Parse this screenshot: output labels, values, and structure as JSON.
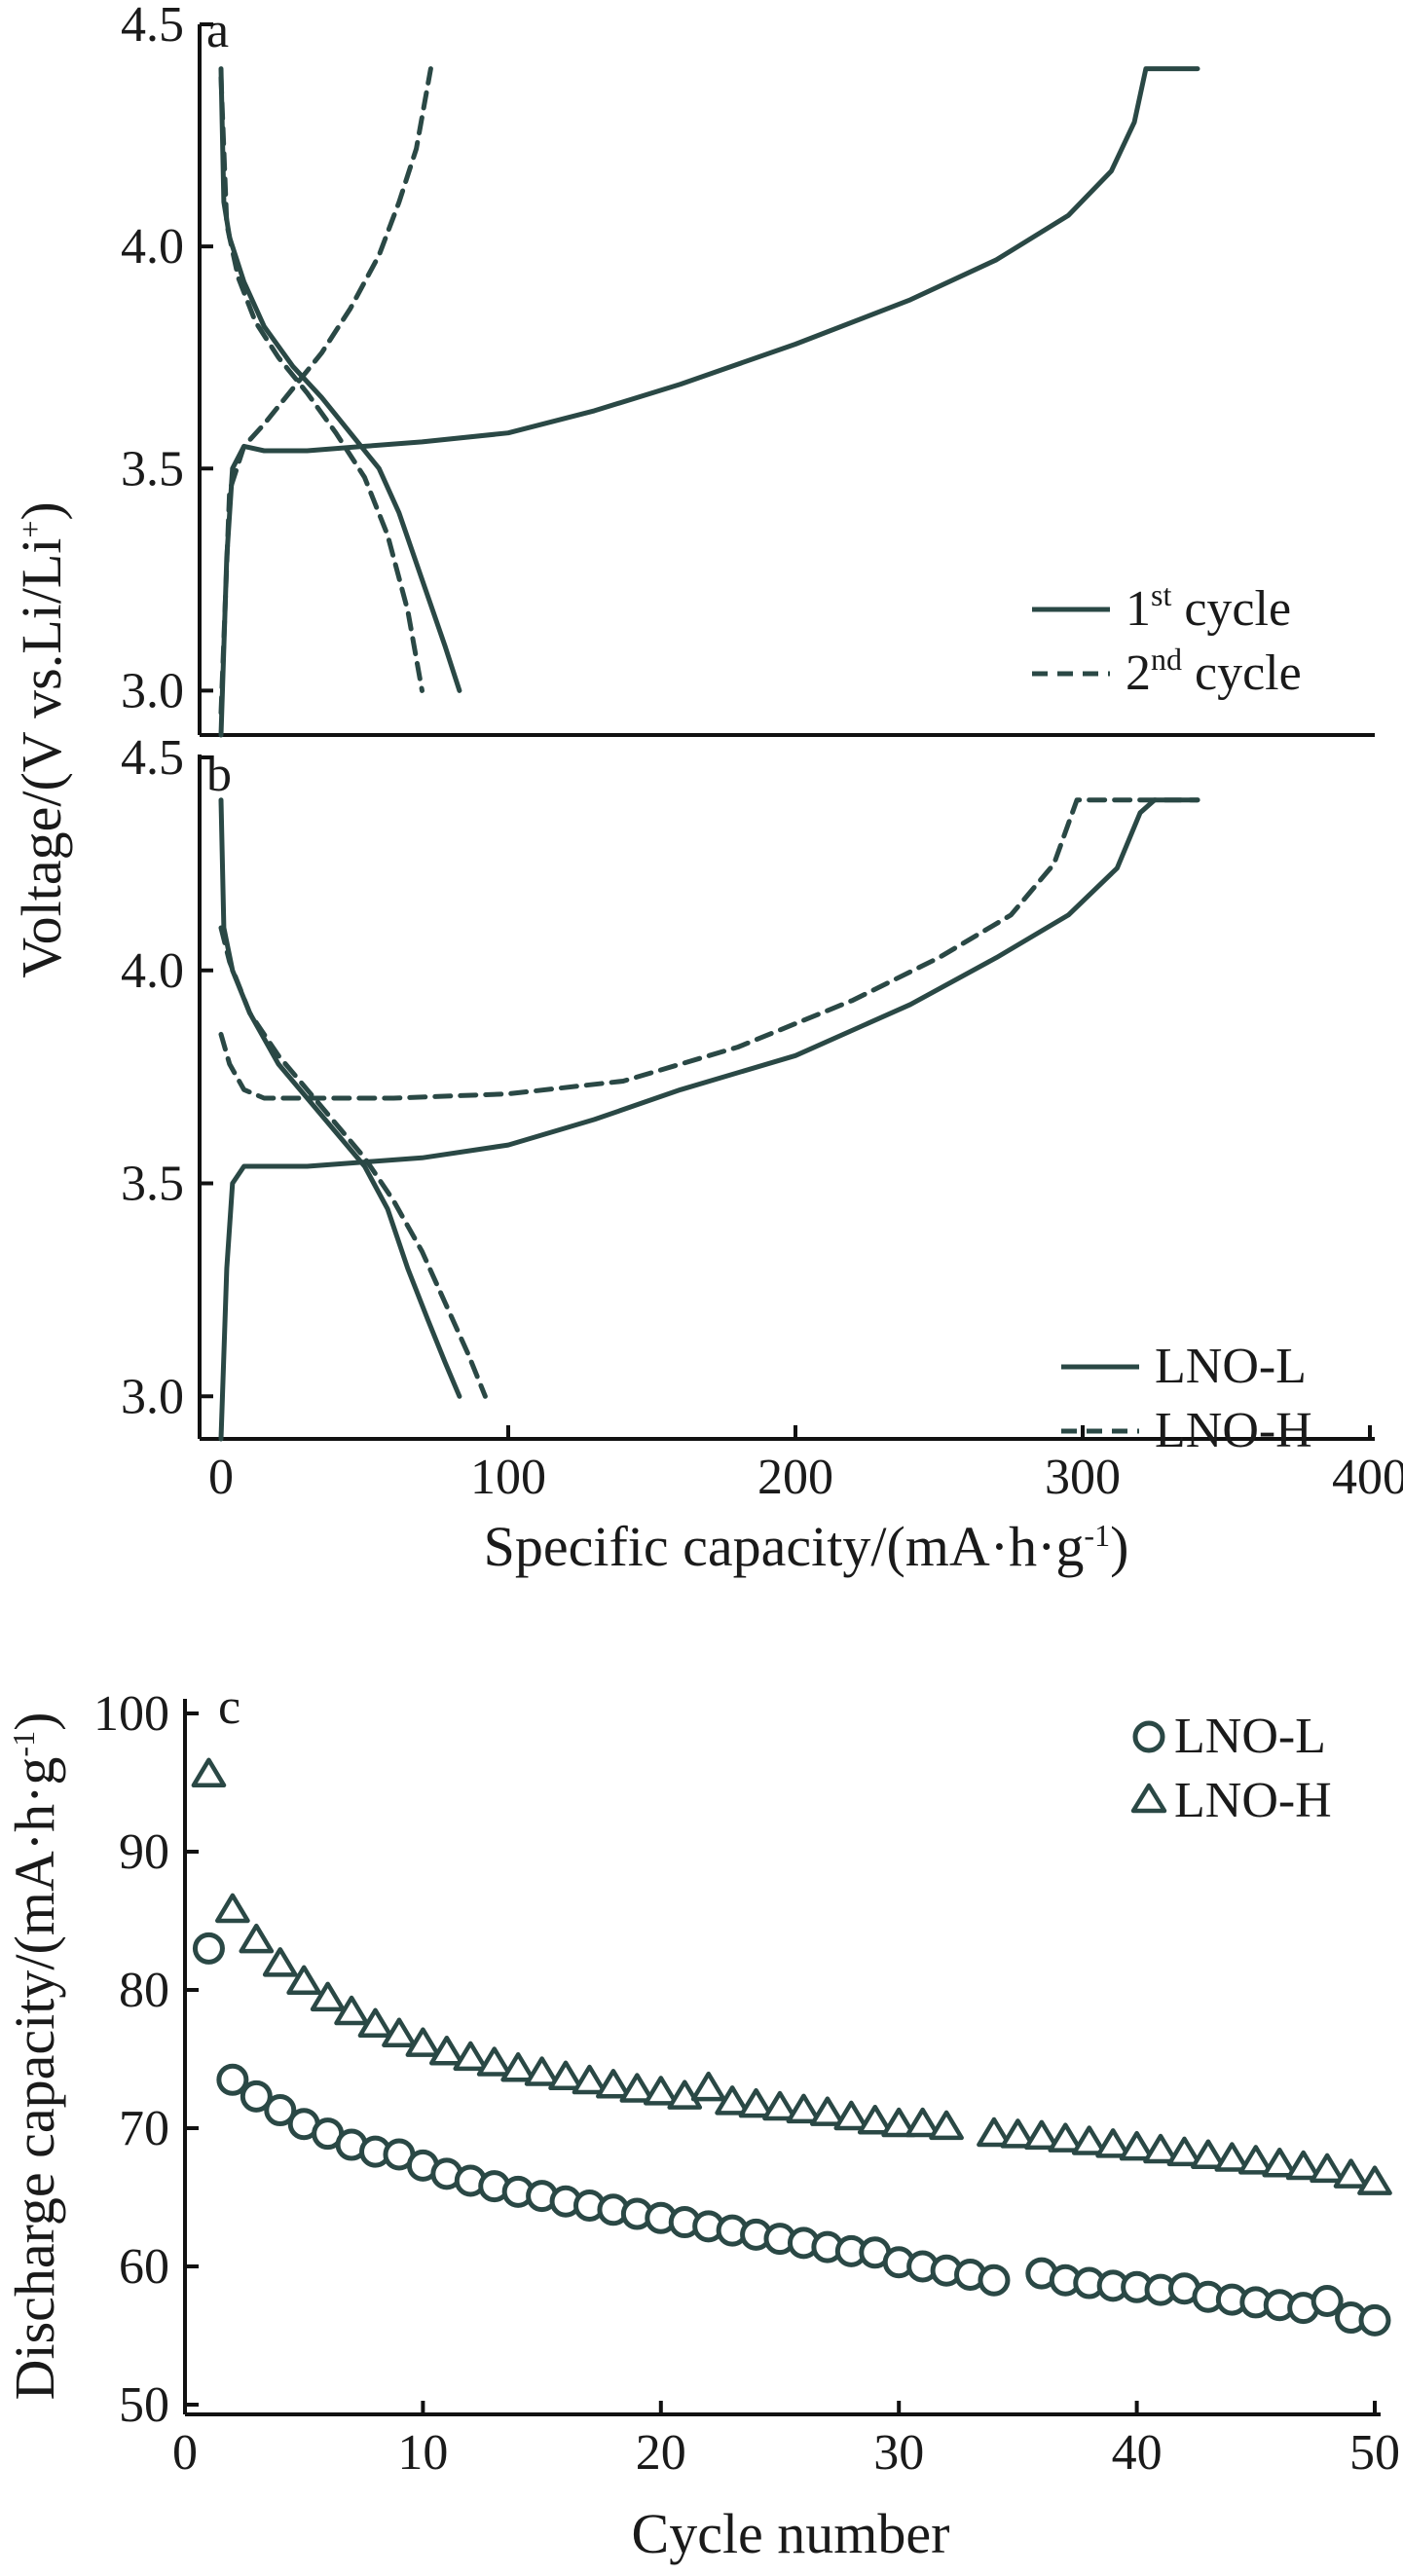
{
  "figure": {
    "shared_ylabel_ab": {
      "main": "Voltage/(V vs.Li/Li",
      "sup": "+",
      "close": ")"
    },
    "xlabel_ab": {
      "main": "Specific capacity/(mA·h·g",
      "sup": "-1",
      "close": ")"
    },
    "ylabel_c": {
      "main": "Discharge capacity/(mA·h·g",
      "sup": "-1",
      "close": ")"
    },
    "xlabel_c": "Cycle number"
  },
  "chart_data": [
    {
      "panel": "a",
      "type": "line",
      "xlim": [
        0,
        400
      ],
      "ylim": [
        2.9,
        4.5
      ],
      "yticks": [
        "3.0",
        "3.5",
        "4.0",
        "4.5"
      ],
      "grid": false,
      "legend_position": "bottom-right",
      "legend": [
        {
          "base": "1",
          "sup": "st",
          "rest": " cycle",
          "style": "solid"
        },
        {
          "base": "2",
          "sup": "nd",
          "rest": " cycle",
          "style": "dashed"
        }
      ],
      "series": [
        {
          "label": "1st cycle charge",
          "style": "solid",
          "points": [
            [
              0,
              2.9
            ],
            [
              2,
              3.3
            ],
            [
              4,
              3.5
            ],
            [
              8,
              3.55
            ],
            [
              15,
              3.54
            ],
            [
              30,
              3.54
            ],
            [
              50,
              3.55
            ],
            [
              70,
              3.56
            ],
            [
              100,
              3.58
            ],
            [
              130,
              3.63
            ],
            [
              160,
              3.69
            ],
            [
              200,
              3.78
            ],
            [
              240,
              3.88
            ],
            [
              270,
              3.97
            ],
            [
              295,
              4.07
            ],
            [
              310,
              4.17
            ],
            [
              318,
              4.28
            ],
            [
              322,
              4.4
            ],
            [
              340,
              4.4
            ]
          ]
        },
        {
          "label": "1st cycle discharge",
          "style": "solid",
          "points": [
            [
              0,
              4.4
            ],
            [
              1,
              4.1
            ],
            [
              3,
              4.02
            ],
            [
              8,
              3.92
            ],
            [
              15,
              3.82
            ],
            [
              25,
              3.73
            ],
            [
              35,
              3.66
            ],
            [
              45,
              3.58
            ],
            [
              55,
              3.5
            ],
            [
              62,
              3.4
            ],
            [
              70,
              3.25
            ],
            [
              78,
              3.1
            ],
            [
              83,
              3.0
            ]
          ]
        },
        {
          "label": "2nd cycle charge",
          "style": "dashed",
          "points": [
            [
              0,
              2.95
            ],
            [
              3,
              3.45
            ],
            [
              8,
              3.55
            ],
            [
              15,
              3.6
            ],
            [
              25,
              3.68
            ],
            [
              35,
              3.76
            ],
            [
              45,
              3.86
            ],
            [
              55,
              3.98
            ],
            [
              62,
              4.1
            ],
            [
              68,
              4.22
            ],
            [
              73,
              4.4
            ]
          ]
        },
        {
          "label": "2nd cycle discharge",
          "style": "dashed",
          "points": [
            [
              0,
              4.38
            ],
            [
              2,
              4.05
            ],
            [
              6,
              3.93
            ],
            [
              12,
              3.83
            ],
            [
              20,
              3.75
            ],
            [
              30,
              3.67
            ],
            [
              40,
              3.58
            ],
            [
              50,
              3.48
            ],
            [
              58,
              3.35
            ],
            [
              65,
              3.18
            ],
            [
              70,
              3.0
            ]
          ]
        }
      ]
    },
    {
      "panel": "b",
      "type": "line",
      "xlabel": "Specific capacity/(mA·h·g-1)",
      "xlim": [
        0,
        400
      ],
      "ylim": [
        2.9,
        4.5
      ],
      "xticks": [
        "0",
        "100",
        "200",
        "300",
        "400"
      ],
      "yticks": [
        "3.0",
        "3.5",
        "4.0",
        "4.5"
      ],
      "grid": false,
      "legend_position": "bottom-right",
      "legend": [
        {
          "base": "LNO-L",
          "sup": "",
          "rest": "",
          "style": "solid"
        },
        {
          "base": "LNO-H",
          "sup": "",
          "rest": "",
          "style": "dashed"
        }
      ],
      "series": [
        {
          "label": "LNO-L charge",
          "style": "solid",
          "points": [
            [
              0,
              2.9
            ],
            [
              2,
              3.3
            ],
            [
              4,
              3.5
            ],
            [
              8,
              3.54
            ],
            [
              15,
              3.54
            ],
            [
              30,
              3.54
            ],
            [
              50,
              3.55
            ],
            [
              70,
              3.56
            ],
            [
              100,
              3.59
            ],
            [
              130,
              3.65
            ],
            [
              160,
              3.72
            ],
            [
              200,
              3.8
            ],
            [
              240,
              3.92
            ],
            [
              270,
              4.03
            ],
            [
              295,
              4.13
            ],
            [
              312,
              4.24
            ],
            [
              320,
              4.37
            ],
            [
              325,
              4.4
            ],
            [
              340,
              4.4
            ]
          ]
        },
        {
          "label": "LNO-L discharge",
          "style": "solid",
          "points": [
            [
              0,
              4.4
            ],
            [
              1,
              4.1
            ],
            [
              4,
              4.0
            ],
            [
              10,
              3.9
            ],
            [
              20,
              3.78
            ],
            [
              30,
              3.7
            ],
            [
              40,
              3.62
            ],
            [
              50,
              3.54
            ],
            [
              58,
              3.44
            ],
            [
              65,
              3.3
            ],
            [
              72,
              3.18
            ],
            [
              78,
              3.08
            ],
            [
              83,
              3.0
            ]
          ]
        },
        {
          "label": "LNO-H charge",
          "style": "dashed",
          "points": [
            [
              0,
              3.85
            ],
            [
              3,
              3.78
            ],
            [
              8,
              3.72
            ],
            [
              15,
              3.7
            ],
            [
              30,
              3.7
            ],
            [
              60,
              3.7
            ],
            [
              100,
              3.71
            ],
            [
              140,
              3.74
            ],
            [
              180,
              3.82
            ],
            [
              220,
              3.93
            ],
            [
              250,
              4.03
            ],
            [
              275,
              4.13
            ],
            [
              290,
              4.25
            ],
            [
              298,
              4.4
            ],
            [
              340,
              4.4
            ]
          ]
        },
        {
          "label": "LNO-H discharge",
          "style": "dashed",
          "points": [
            [
              0,
              4.1
            ],
            [
              3,
              4.02
            ],
            [
              10,
              3.9
            ],
            [
              20,
              3.8
            ],
            [
              30,
              3.72
            ],
            [
              40,
              3.64
            ],
            [
              50,
              3.56
            ],
            [
              60,
              3.46
            ],
            [
              70,
              3.34
            ],
            [
              78,
              3.22
            ],
            [
              86,
              3.1
            ],
            [
              92,
              3.0
            ]
          ]
        }
      ]
    },
    {
      "panel": "c",
      "type": "scatter",
      "xlabel": "Cycle number",
      "xlim": [
        0,
        50
      ],
      "ylim": [
        50,
        100
      ],
      "xticks": [
        "0",
        "10",
        "20",
        "30",
        "40",
        "50"
      ],
      "yticks": [
        "50",
        "60",
        "70",
        "80",
        "90",
        "100"
      ],
      "grid": false,
      "legend_position": "top-right",
      "legend": [
        {
          "name": "LNO-L",
          "marker": "circle"
        },
        {
          "name": "LNO-H",
          "marker": "triangle"
        }
      ],
      "series": [
        {
          "name": "LNO-L",
          "marker": "circle",
          "x": [
            1,
            2,
            3,
            4,
            5,
            6,
            7,
            8,
            9,
            10,
            11,
            12,
            13,
            14,
            15,
            16,
            17,
            18,
            19,
            20,
            21,
            22,
            23,
            24,
            25,
            26,
            27,
            28,
            29,
            30,
            31,
            32,
            33,
            34,
            36,
            37,
            38,
            39,
            40,
            41,
            42,
            43,
            44,
            45,
            46,
            47,
            48,
            49,
            50
          ],
          "y": [
            83,
            73.5,
            72.3,
            71.3,
            70.3,
            69.6,
            68.8,
            68.3,
            68.1,
            67.3,
            66.7,
            66.2,
            65.8,
            65.4,
            65.1,
            64.7,
            64.4,
            64.1,
            63.8,
            63.5,
            63.2,
            62.9,
            62.6,
            62.3,
            62.0,
            61.7,
            61.4,
            61.1,
            61.0,
            60.3,
            60.0,
            59.7,
            59.4,
            59.0,
            59.5,
            59.0,
            58.8,
            58.6,
            58.5,
            58.3,
            58.4,
            57.8,
            57.6,
            57.4,
            57.2,
            57.0,
            57.5,
            56.3,
            56.1
          ]
        },
        {
          "name": "LNO-H",
          "marker": "triangle",
          "x": [
            1,
            2,
            3,
            4,
            5,
            6,
            7,
            8,
            9,
            10,
            11,
            12,
            13,
            14,
            15,
            16,
            17,
            18,
            19,
            20,
            21,
            22,
            23,
            24,
            25,
            26,
            27,
            28,
            29,
            30,
            31,
            32,
            34,
            35,
            36,
            37,
            38,
            39,
            40,
            41,
            42,
            43,
            44,
            45,
            46,
            47,
            48,
            49,
            50
          ],
          "y": [
            95.5,
            85.7,
            83.5,
            81.8,
            80.5,
            79.3,
            78.3,
            77.4,
            76.7,
            76.0,
            75.4,
            75.0,
            74.6,
            74.2,
            73.9,
            73.6,
            73.3,
            73.0,
            72.7,
            72.5,
            72.2,
            72.8,
            71.8,
            71.6,
            71.4,
            71.2,
            71.0,
            70.7,
            70.4,
            70.2,
            70.2,
            70.0,
            69.5,
            69.4,
            69.3,
            69.1,
            68.9,
            68.7,
            68.5,
            68.3,
            68.1,
            67.9,
            67.7,
            67.5,
            67.3,
            67.1,
            66.9,
            66.5,
            66.0
          ]
        }
      ]
    }
  ]
}
